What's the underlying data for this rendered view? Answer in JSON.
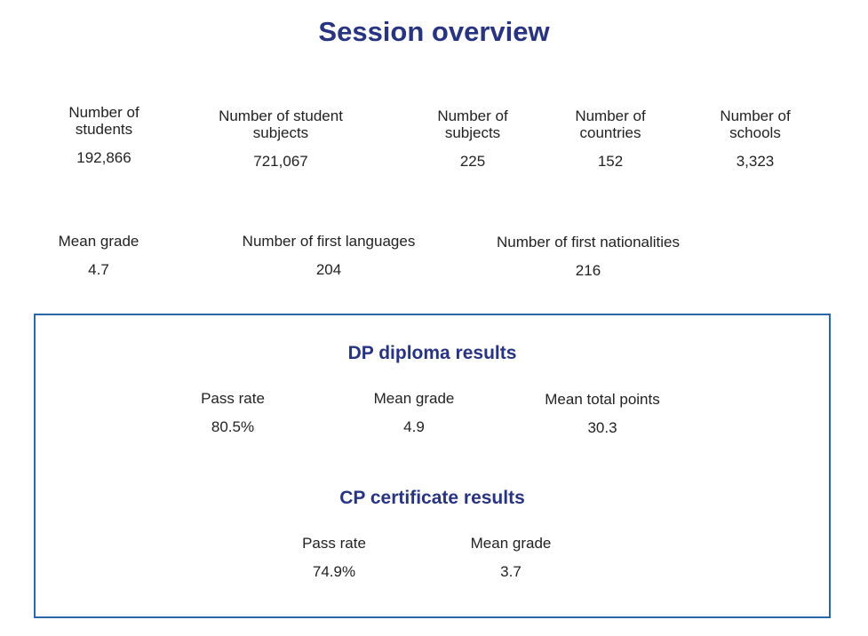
{
  "title": "Session overview",
  "overview": {
    "students": {
      "label": "Number of\nstudents",
      "value": "192,866"
    },
    "student_subjects": {
      "label": "Number of student\nsubjects",
      "value": "721,067"
    },
    "subjects": {
      "label": "Number of\nsubjects",
      "value": "225"
    },
    "countries": {
      "label": "Number of\ncountries",
      "value": "152"
    },
    "schools": {
      "label": "Number of\nschools",
      "value": "3,323"
    },
    "mean_grade": {
      "label": "Mean grade",
      "value": "4.7"
    },
    "first_languages": {
      "label": "Number of first languages",
      "value": "204"
    },
    "first_nationalities": {
      "label": "Number of first nationalities",
      "value": "216"
    }
  },
  "dp_results": {
    "title": "DP diploma results",
    "pass_rate": {
      "label": "Pass rate",
      "value": "80.5%"
    },
    "mean_grade": {
      "label": "Mean grade",
      "value": "4.9"
    },
    "mean_total_points": {
      "label": "Mean total points",
      "value": "30.3"
    }
  },
  "cp_results": {
    "title": "CP certificate results",
    "pass_rate": {
      "label": "Pass rate",
      "value": "74.9%"
    },
    "mean_grade": {
      "label": "Mean grade",
      "value": "3.7"
    }
  }
}
